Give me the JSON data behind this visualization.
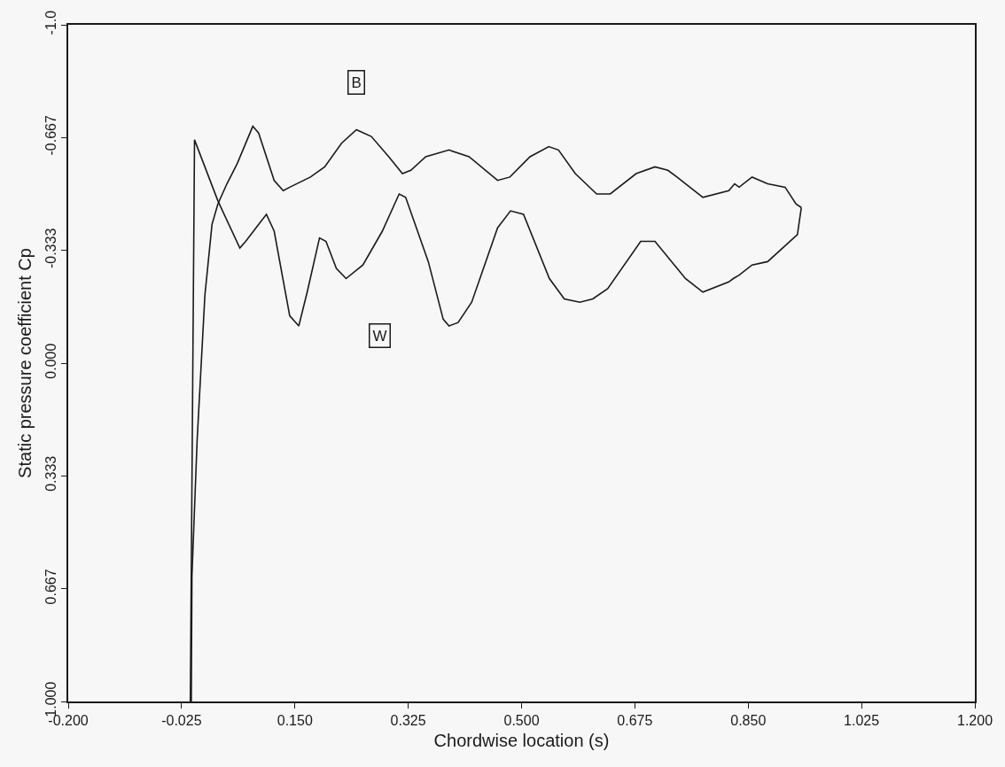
{
  "chart_data": {
    "type": "line",
    "xlabel": "Chordwise location (s)",
    "ylabel": "Static pressure coefficient Cp",
    "xlim": [
      -0.2,
      1.2
    ],
    "ylim": [
      1.0,
      -1.0
    ],
    "xticks": [
      {
        "value": -0.2,
        "label": "-0.200"
      },
      {
        "value": -0.025,
        "label": "-0.025"
      },
      {
        "value": 0.15,
        "label": "0.150"
      },
      {
        "value": 0.325,
        "label": "0.325"
      },
      {
        "value": 0.5,
        "label": "0.500"
      },
      {
        "value": 0.675,
        "label": "0.675"
      },
      {
        "value": 0.85,
        "label": "0.850"
      },
      {
        "value": 1.025,
        "label": "1.025"
      },
      {
        "value": 1.2,
        "label": "1.200"
      }
    ],
    "yticks": [
      {
        "value": -1.0,
        "label": "-1.0"
      },
      {
        "value": -0.667,
        "label": "-0.667"
      },
      {
        "value": -0.333,
        "label": "-0.333"
      },
      {
        "value": 0.0,
        "label": "0.000"
      },
      {
        "value": 0.333,
        "label": "0.333"
      },
      {
        "value": 0.667,
        "label": "0.667"
      },
      {
        "value": 1.0,
        "label": "1.000"
      }
    ],
    "grid": false,
    "marker": "none",
    "line_style": "solid",
    "series": [
      {
        "color": "#1a1a1a",
        "x": [
          -0.01,
          -0.009,
          -0.001,
          0.011,
          0.022,
          0.031,
          0.045,
          0.061,
          0.085,
          0.094,
          0.118,
          0.132,
          0.142,
          0.174,
          0.196,
          0.222,
          0.245,
          0.268,
          0.295,
          0.316,
          0.329,
          0.352,
          0.388,
          0.419,
          0.463,
          0.482,
          0.513,
          0.542,
          0.557,
          0.583,
          0.616,
          0.637,
          0.677,
          0.706,
          0.726,
          0.74,
          0.78,
          0.82,
          0.829,
          0.836,
          0.856,
          0.88,
          0.907,
          0.924,
          0.932
        ],
        "values": [
          1.0,
          0.63,
          0.23,
          -0.2,
          -0.41,
          -0.47,
          -0.53,
          -0.59,
          -0.7,
          -0.68,
          -0.54,
          -0.51,
          -0.52,
          -0.55,
          -0.58,
          -0.65,
          -0.69,
          -0.67,
          -0.61,
          -0.56,
          -0.57,
          -0.61,
          -0.63,
          -0.61,
          -0.54,
          -0.55,
          -0.61,
          -0.64,
          -0.63,
          -0.56,
          -0.5,
          -0.5,
          -0.56,
          -0.58,
          -0.57,
          -0.55,
          -0.49,
          -0.51,
          -0.53,
          -0.52,
          -0.55,
          -0.53,
          -0.52,
          -0.47,
          -0.46
        ]
      },
      {
        "color": "#1a1a1a",
        "x": [
          -0.0115,
          -0.005,
          0.031,
          0.065,
          0.074,
          0.106,
          0.118,
          0.142,
          0.156,
          0.169,
          0.188,
          0.198,
          0.214,
          0.229,
          0.255,
          0.285,
          0.311,
          0.321,
          0.356,
          0.379,
          0.388,
          0.402,
          0.423,
          0.463,
          0.483,
          0.503,
          0.543,
          0.566,
          0.59,
          0.61,
          0.633,
          0.684,
          0.706,
          0.753,
          0.78,
          0.82,
          0.827,
          0.836,
          0.856,
          0.88,
          0.926,
          0.932
        ],
        "values": [
          1.0,
          -0.66,
          -0.48,
          -0.34,
          -0.36,
          -0.44,
          -0.39,
          -0.14,
          -0.11,
          -0.21,
          -0.37,
          -0.36,
          -0.28,
          -0.25,
          -0.29,
          -0.39,
          -0.5,
          -0.49,
          -0.3,
          -0.13,
          -0.11,
          -0.12,
          -0.18,
          -0.4,
          -0.45,
          -0.44,
          -0.25,
          -0.19,
          -0.18,
          -0.19,
          -0.22,
          -0.36,
          -0.36,
          -0.25,
          -0.21,
          -0.24,
          -0.25,
          -0.26,
          -0.29,
          -0.3,
          -0.38,
          -0.46
        ]
      }
    ],
    "annotations": [
      {
        "text": "B",
        "x": 0.245,
        "y": -0.83
      },
      {
        "text": "W",
        "x": 0.281,
        "y": -0.08
      }
    ]
  }
}
